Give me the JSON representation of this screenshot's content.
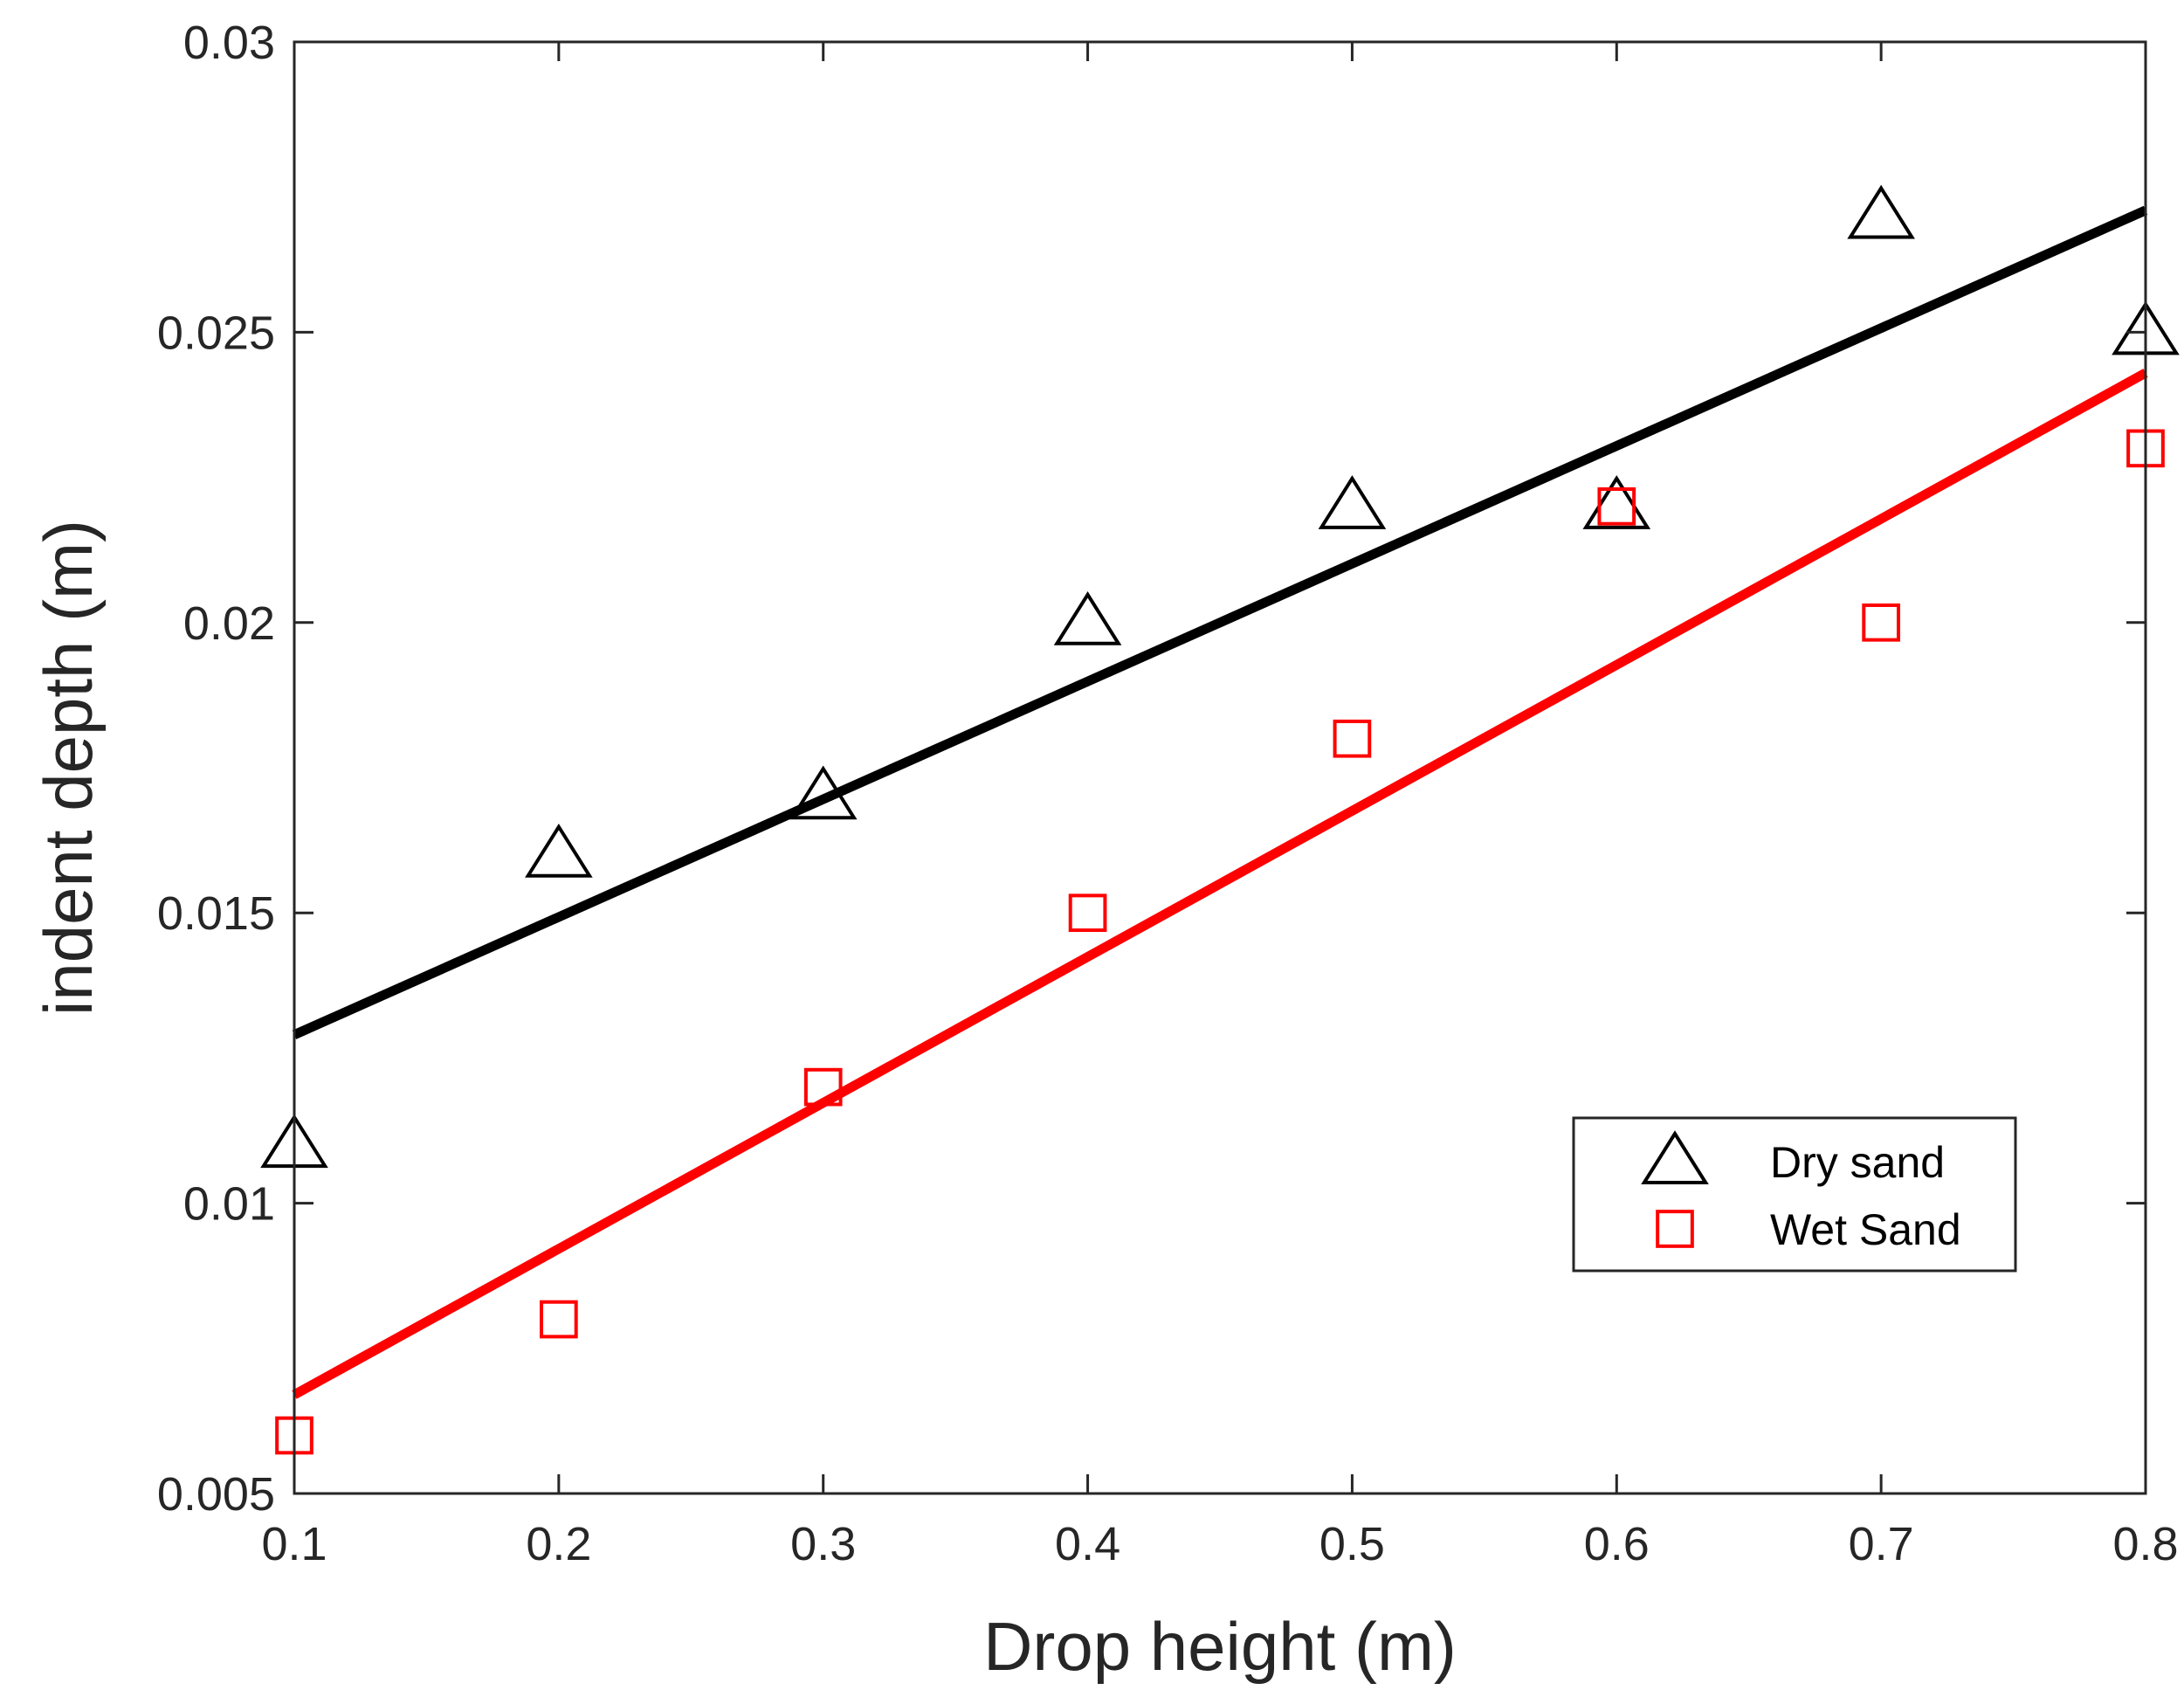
{
  "chart_data": {
    "type": "scatter",
    "title": "",
    "xlabel": "Drop height (m)",
    "ylabel": "indent depth (m)",
    "xlim": [
      0.1,
      0.8
    ],
    "ylim": [
      0.005,
      0.03
    ],
    "xticks": [
      0.1,
      0.2,
      0.3,
      0.4,
      0.5,
      0.6,
      0.7,
      0.8
    ],
    "xtick_labels": [
      "0.1",
      "0.2",
      "0.3",
      "0.4",
      "0.5",
      "0.6",
      "0.7",
      "0.8"
    ],
    "yticks": [
      0.005,
      0.01,
      0.015,
      0.02,
      0.025,
      0.03
    ],
    "ytick_labels": [
      "0.005",
      "0.01",
      "0.015",
      "0.02",
      "0.025",
      "0.03"
    ],
    "grid": false,
    "legend_position": "lower-right",
    "series": [
      {
        "name": "Dry sand",
        "marker": "triangle",
        "color": "#000000",
        "x": [
          0.1,
          0.2,
          0.3,
          0.4,
          0.5,
          0.6,
          0.7,
          0.8
        ],
        "y": [
          0.011,
          0.016,
          0.017,
          0.02,
          0.022,
          0.022,
          0.027,
          0.025
        ],
        "fit": {
          "x": [
            0.1,
            0.8
          ],
          "y": [
            0.0129,
            0.0271
          ]
        }
      },
      {
        "name": "Wet Sand",
        "marker": "square",
        "color": "#ff0000",
        "x": [
          0.1,
          0.2,
          0.3,
          0.4,
          0.5,
          0.6,
          0.7,
          0.8
        ],
        "y": [
          0.006,
          0.008,
          0.012,
          0.015,
          0.018,
          0.022,
          0.02,
          0.023
        ],
        "fit": {
          "x": [
            0.1,
            0.8
          ],
          "y": [
            0.0067,
            0.0243
          ]
        }
      }
    ]
  }
}
